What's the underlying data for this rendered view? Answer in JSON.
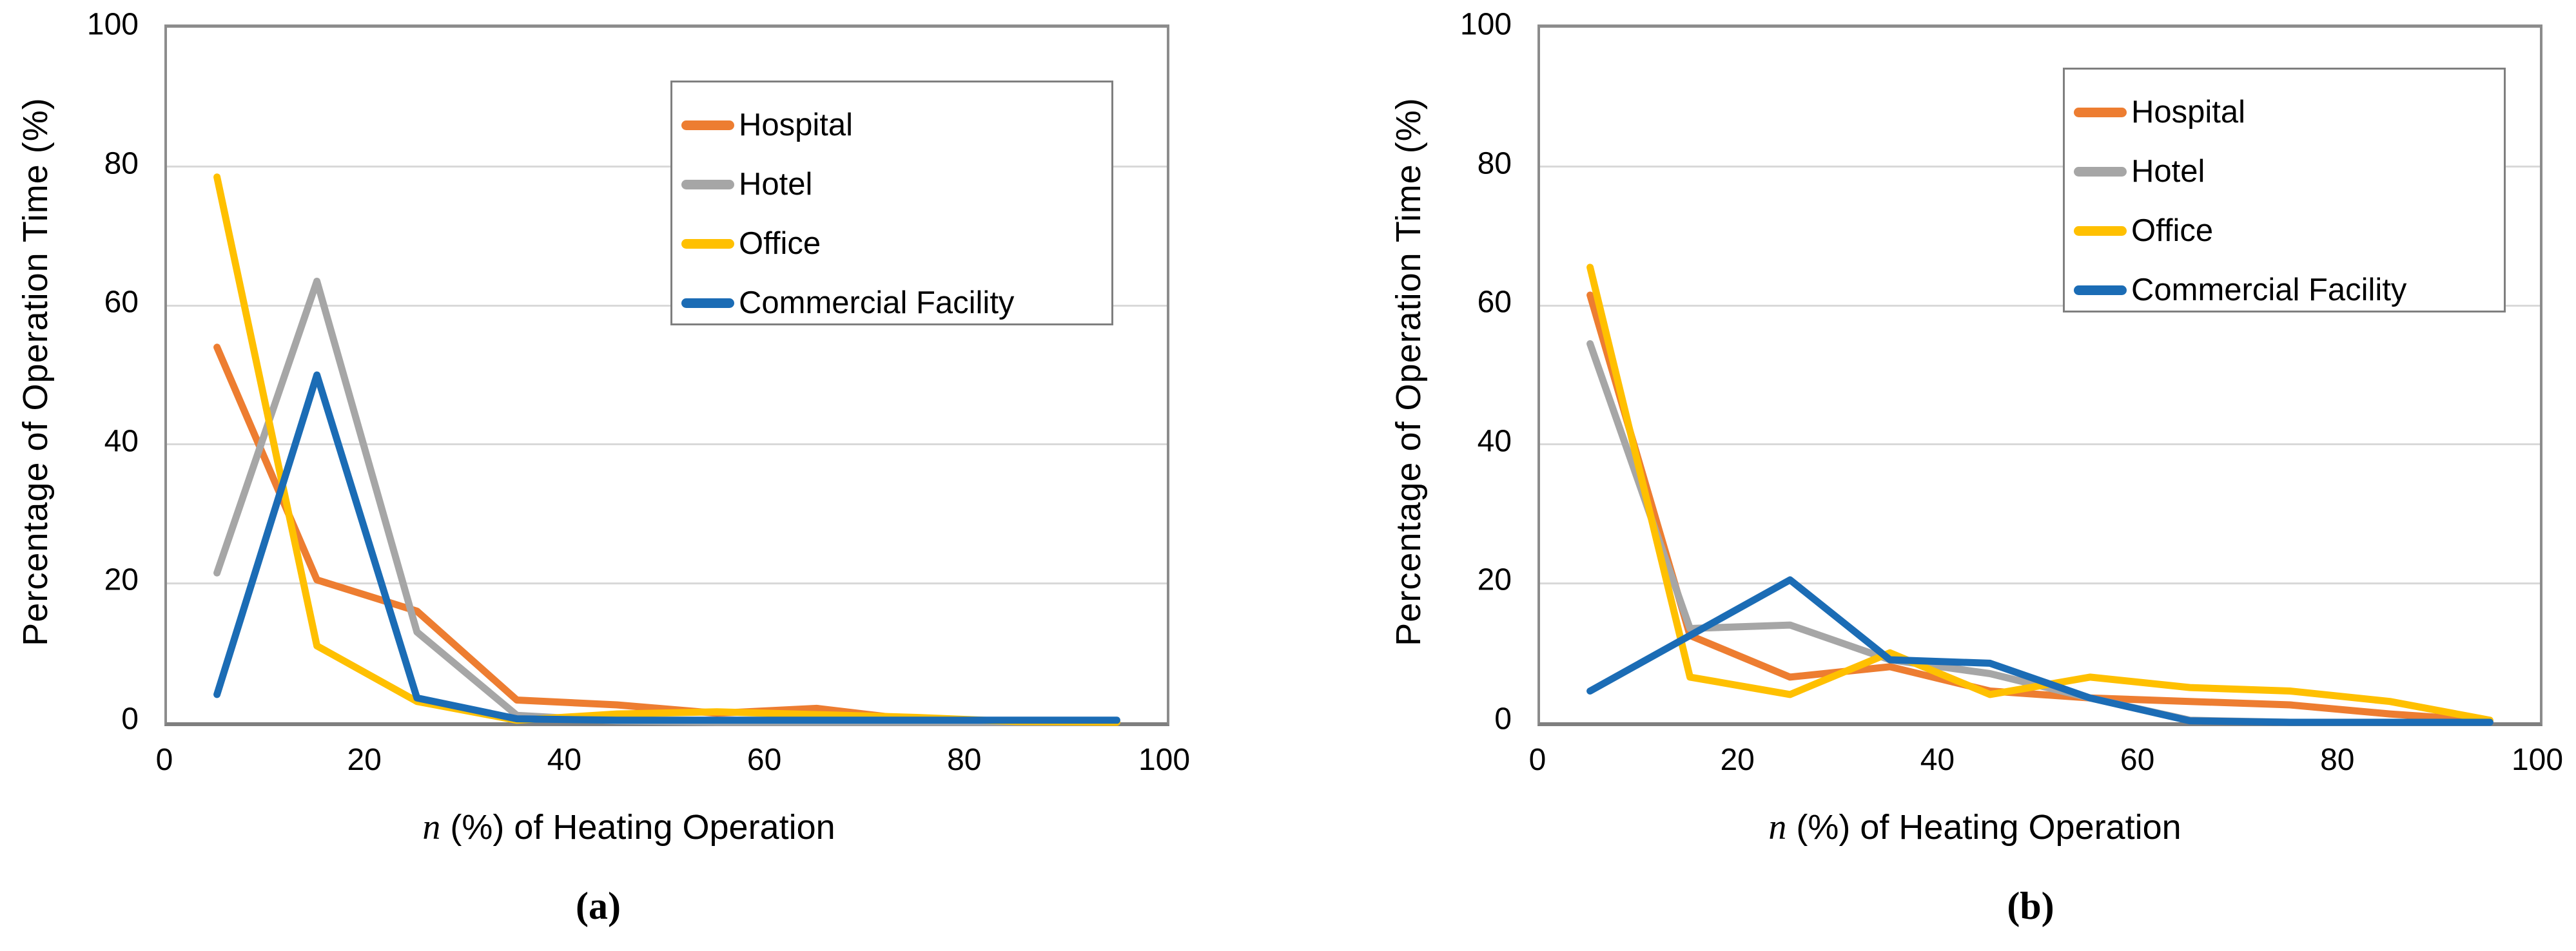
{
  "chart_data": [
    {
      "type": "line",
      "caption": "(a)",
      "ylabel": "Percentage of Operation Time (%)",
      "xlabel_var": "n",
      "xlabel_rest": " (%) of Heating Operation",
      "xlim": [
        0,
        100
      ],
      "ylim": [
        0,
        100
      ],
      "grid": "horizontal",
      "legend_position": "top-right",
      "x_ticks": [
        0,
        20,
        40,
        60,
        80,
        100
      ],
      "y_ticks": [
        100,
        80,
        60,
        40,
        20,
        0
      ],
      "x": [
        5,
        15,
        25,
        35,
        45,
        55,
        65,
        75,
        85,
        95
      ],
      "series": [
        {
          "name": "Hospital",
          "color": "#ED7D31",
          "values": [
            54,
            20.5,
            16,
            3.2,
            2.5,
            1.3,
            2,
            0.3,
            0,
            0
          ]
        },
        {
          "name": "Hotel",
          "color": "#A6A6A6",
          "values": [
            21.5,
            63.5,
            13,
            1,
            0.2,
            0,
            0,
            0,
            0,
            0
          ]
        },
        {
          "name": "Office",
          "color": "#FFC000",
          "values": [
            78.5,
            11,
            3,
            0.3,
            1.2,
            1.5,
            1.1,
            0.7,
            0.1,
            0
          ]
        },
        {
          "name": "Commercial Facility",
          "color": "#1B6CB5",
          "values": [
            4,
            50,
            3.5,
            0.5,
            0.3,
            0.3,
            0.3,
            0.3,
            0.3,
            0.3
          ]
        }
      ]
    },
    {
      "type": "line",
      "caption": "(b)",
      "ylabel": "Percentage of Operation Time (%)",
      "xlabel_var": "n",
      "xlabel_rest": " (%) of Heating Operation",
      "xlim": [
        0,
        100
      ],
      "ylim": [
        0,
        100
      ],
      "grid": "horizontal",
      "legend_position": "top-right",
      "x_ticks": [
        0,
        20,
        40,
        60,
        80,
        100
      ],
      "y_ticks": [
        100,
        80,
        60,
        40,
        20,
        0
      ],
      "x": [
        5,
        15,
        25,
        35,
        45,
        55,
        65,
        75,
        85,
        95
      ],
      "series": [
        {
          "name": "Hospital",
          "color": "#ED7D31",
          "values": [
            61.5,
            12.5,
            6.5,
            8,
            4.5,
            3.5,
            3,
            2.5,
            1.2,
            0.2
          ]
        },
        {
          "name": "Hotel",
          "color": "#A6A6A6",
          "values": [
            54.5,
            13.5,
            14,
            9,
            7,
            3.5,
            0.3,
            0,
            0,
            0
          ]
        },
        {
          "name": "Office",
          "color": "#FFC000",
          "values": [
            65.5,
            6.5,
            4,
            10,
            4,
            6.5,
            5,
            4.5,
            3,
            0.3
          ]
        },
        {
          "name": "Commercial Facility",
          "color": "#1B6CB5",
          "values": [
            4.5,
            12.5,
            20.5,
            9,
            8.5,
            3.5,
            0.2,
            0,
            0,
            0
          ]
        }
      ]
    }
  ]
}
